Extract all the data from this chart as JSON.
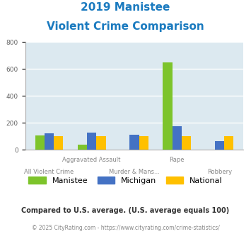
{
  "title_line1": "2019 Manistee",
  "title_line2": "Violent Crime Comparison",
  "title_color": "#1a7abf",
  "manistee": [
    105,
    40,
    0,
    650,
    0
  ],
  "michigan": [
    120,
    130,
    110,
    175,
    65
  ],
  "national": [
    100,
    100,
    100,
    100,
    100
  ],
  "manistee_color": "#7dc42b",
  "michigan_color": "#4472c4",
  "national_color": "#ffc000",
  "ylim": [
    0,
    800
  ],
  "yticks": [
    0,
    200,
    400,
    600,
    800
  ],
  "plot_bg": "#dce9f0",
  "grid_color": "#ffffff",
  "top_labels": [
    "",
    "Aggravated Assault",
    "",
    "Rape",
    ""
  ],
  "bottom_labels": [
    "All Violent Crime",
    "",
    "Murder & Mans...",
    "",
    "Robbery"
  ],
  "footnote": "Compared to U.S. average. (U.S. average equals 100)",
  "footnote2": "© 2025 CityRating.com - https://www.cityrating.com/crime-statistics/",
  "footnote_color": "#333333",
  "footnote2_color": "#888888",
  "link_color": "#4472c4",
  "legend_labels": [
    "Manistee",
    "Michigan",
    "National"
  ],
  "bar_width": 0.22
}
